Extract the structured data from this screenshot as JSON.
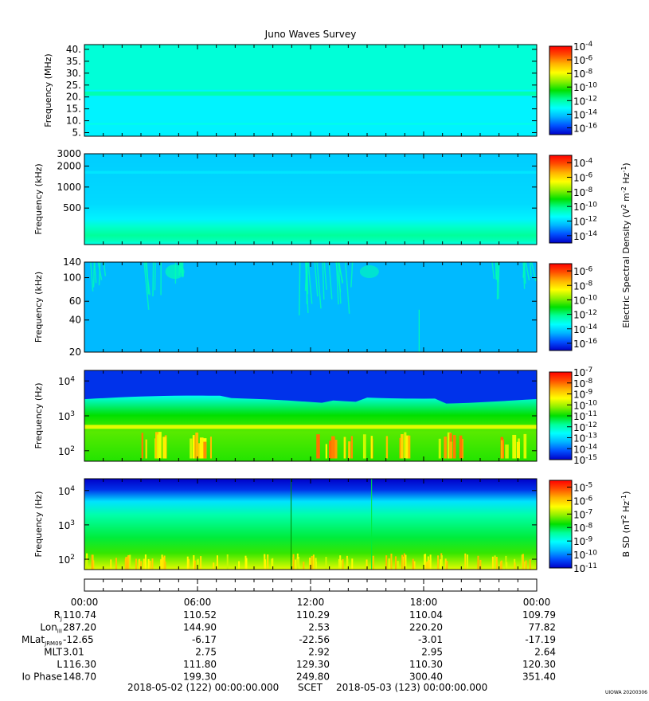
{
  "title": "Juno Waves Survey",
  "stamp": "UIOWA 20200306",
  "colors": {
    "spectrum": [
      "#0000c8",
      "#0050ff",
      "#00b4ff",
      "#00ffff",
      "#00ff9a",
      "#00e000",
      "#8cf000",
      "#ffff00",
      "#ffb400",
      "#ff5000",
      "#ff0000"
    ]
  },
  "chart_data": [
    {
      "type": "heatmap",
      "panel": 1,
      "ylabel": "Frequency (MHz)",
      "yscale": "linear",
      "ylim": [
        3.5,
        42
      ],
      "yticks": [
        5,
        10,
        15,
        20,
        25,
        30,
        35,
        40
      ],
      "yticklabels": [
        "5.",
        "10.",
        "15.",
        "20.",
        "25.",
        "30.",
        "35.",
        "40."
      ],
      "features": [
        {
          "name": "upper band",
          "frequency_mhz": [
            23,
            42
          ],
          "log_density": -12.6
        },
        {
          "name": "narrow bright band",
          "frequency_mhz": [
            20.5,
            22.3
          ],
          "log_density": -12.1
        },
        {
          "name": "lower band",
          "frequency_mhz": [
            3.5,
            20.5
          ],
          "log_density": -13.3
        }
      ],
      "colorbar": {
        "ticks": [
          "10-4",
          "10-6",
          "10-8",
          "10-10",
          "10-12",
          "10-14",
          "10-16"
        ],
        "range": [
          -17,
          -4
        ]
      }
    },
    {
      "type": "heatmap",
      "panel": 2,
      "ylabel": "Frequency (kHz)",
      "yscale": "log",
      "ylim": [
        150,
        3000
      ],
      "yticks": [
        500,
        1000,
        2000,
        3000
      ],
      "yticklabels": [
        "500",
        "1000",
        "2000",
        "3000"
      ],
      "features": [
        {
          "name": "band near 1.6 MHz",
          "frequency_khz": [
            1550,
            1700
          ],
          "log_density": -11.8
        },
        {
          "name": "low-frequency emission",
          "frequency_khz": [
            175,
            260
          ],
          "log_density": -10.2
        }
      ],
      "colorbar": {
        "ticks": [
          "10-4",
          "10-6",
          "10-8",
          "10-10",
          "10-12",
          "10-14"
        ],
        "range": [
          -15,
          -3
        ]
      }
    },
    {
      "type": "heatmap",
      "panel": 3,
      "ylabel": "Frequency (kHz)",
      "yscale": "log",
      "ylim": [
        20,
        140
      ],
      "yticks": [
        20,
        40,
        60,
        100,
        140
      ],
      "yticklabels": [
        "20",
        "40",
        "60",
        "100",
        "140"
      ],
      "background_log_density": -14.5,
      "features": [
        {
          "name": "bursts",
          "time_hours": [
            0.2,
            5.8,
            12.0,
            15.5,
            23.7
          ],
          "log_density": -12.5
        }
      ],
      "colorbar": {
        "ticks": [
          "10-6",
          "10-8",
          "10-10",
          "10-12",
          "10-14",
          "10-16"
        ],
        "range": [
          -17,
          -5
        ]
      }
    },
    {
      "type": "heatmap",
      "panel": 4,
      "ylabel": "Frequency (Hz)",
      "yscale": "log",
      "ylim": [
        50,
        20000
      ],
      "yticks": [
        100,
        1000,
        10000
      ],
      "yticklabels": [
        "10^2",
        "10^3",
        "10^4"
      ],
      "features": [
        {
          "name": "upper cutoff",
          "frequency_hz": [
            2500,
            4000
          ],
          "log_density": -12.5
        },
        {
          "name": "band near 500 Hz",
          "frequency_hz": [
            450,
            550
          ],
          "log_density": -9.6
        },
        {
          "name": "intense bursts",
          "frequency_hz": [
            60,
            300
          ],
          "log_density": -8.0
        }
      ],
      "colorbar": {
        "ticks": [
          "10-7",
          "10-8",
          "10-9",
          "10-10",
          "10-11",
          "10-12",
          "10-13",
          "10-14",
          "10-15"
        ],
        "range": [
          -15,
          -7
        ]
      }
    },
    {
      "type": "heatmap",
      "panel": 5,
      "ylabel": "Frequency (Hz)",
      "yscale": "log",
      "ylim": [
        50,
        22000
      ],
      "yticks": [
        100,
        1000,
        10000
      ],
      "yticklabels": [
        "10^2",
        "10^3",
        "10^4"
      ],
      "features": [
        {
          "name": "intense low-frequency",
          "frequency_hz": [
            50,
            130
          ],
          "log_density": -6.0
        },
        {
          "name": "background",
          "frequency_hz": [
            130,
            8000
          ],
          "log_density": -8.0
        },
        {
          "name": "upper cutoff",
          "frequency_hz": [
            8000,
            22000
          ],
          "log_density": -11.0
        }
      ],
      "colorbar": {
        "ticks": [
          "10-5",
          "10-6",
          "10-7",
          "10-8",
          "10-9",
          "10-10",
          "10-11"
        ],
        "range": [
          -11,
          -4.5
        ]
      }
    }
  ],
  "colorbar_labels": {
    "electric": "Electric Spectral Density (V2 m-2 Hz-1)",
    "magnetic": "B SD (nT2 Hz-1)"
  },
  "time_axis": {
    "ticks": [
      "00:00",
      "06:00",
      "12:00",
      "18:00",
      "00:00"
    ],
    "rows": [
      {
        "label": "RJ",
        "values": [
          "110.74",
          "110.52",
          "110.29",
          "110.04",
          "109.79"
        ]
      },
      {
        "label": "LonIII",
        "values": [
          "287.20",
          "144.90",
          "2.53",
          "220.20",
          "77.82"
        ]
      },
      {
        "label": "MLatJRM09",
        "values": [
          "-12.65",
          "-6.17",
          "-22.56",
          "-3.01",
          "-17.19"
        ]
      },
      {
        "label": "MLT",
        "values": [
          "3.01",
          "2.75",
          "2.92",
          "2.95",
          "2.64"
        ]
      },
      {
        "label": "L",
        "values": [
          "116.30",
          "111.80",
          "129.30",
          "110.30",
          "120.30"
        ]
      },
      {
        "label": "Io Phase",
        "values": [
          "148.70",
          "199.30",
          "249.80",
          "300.40",
          "351.40"
        ]
      }
    ],
    "range_start": "2018-05-02 (122) 00:00:00.000",
    "range_mid": "SCET",
    "range_end": "2018-05-03 (123) 00:00:00.000"
  }
}
